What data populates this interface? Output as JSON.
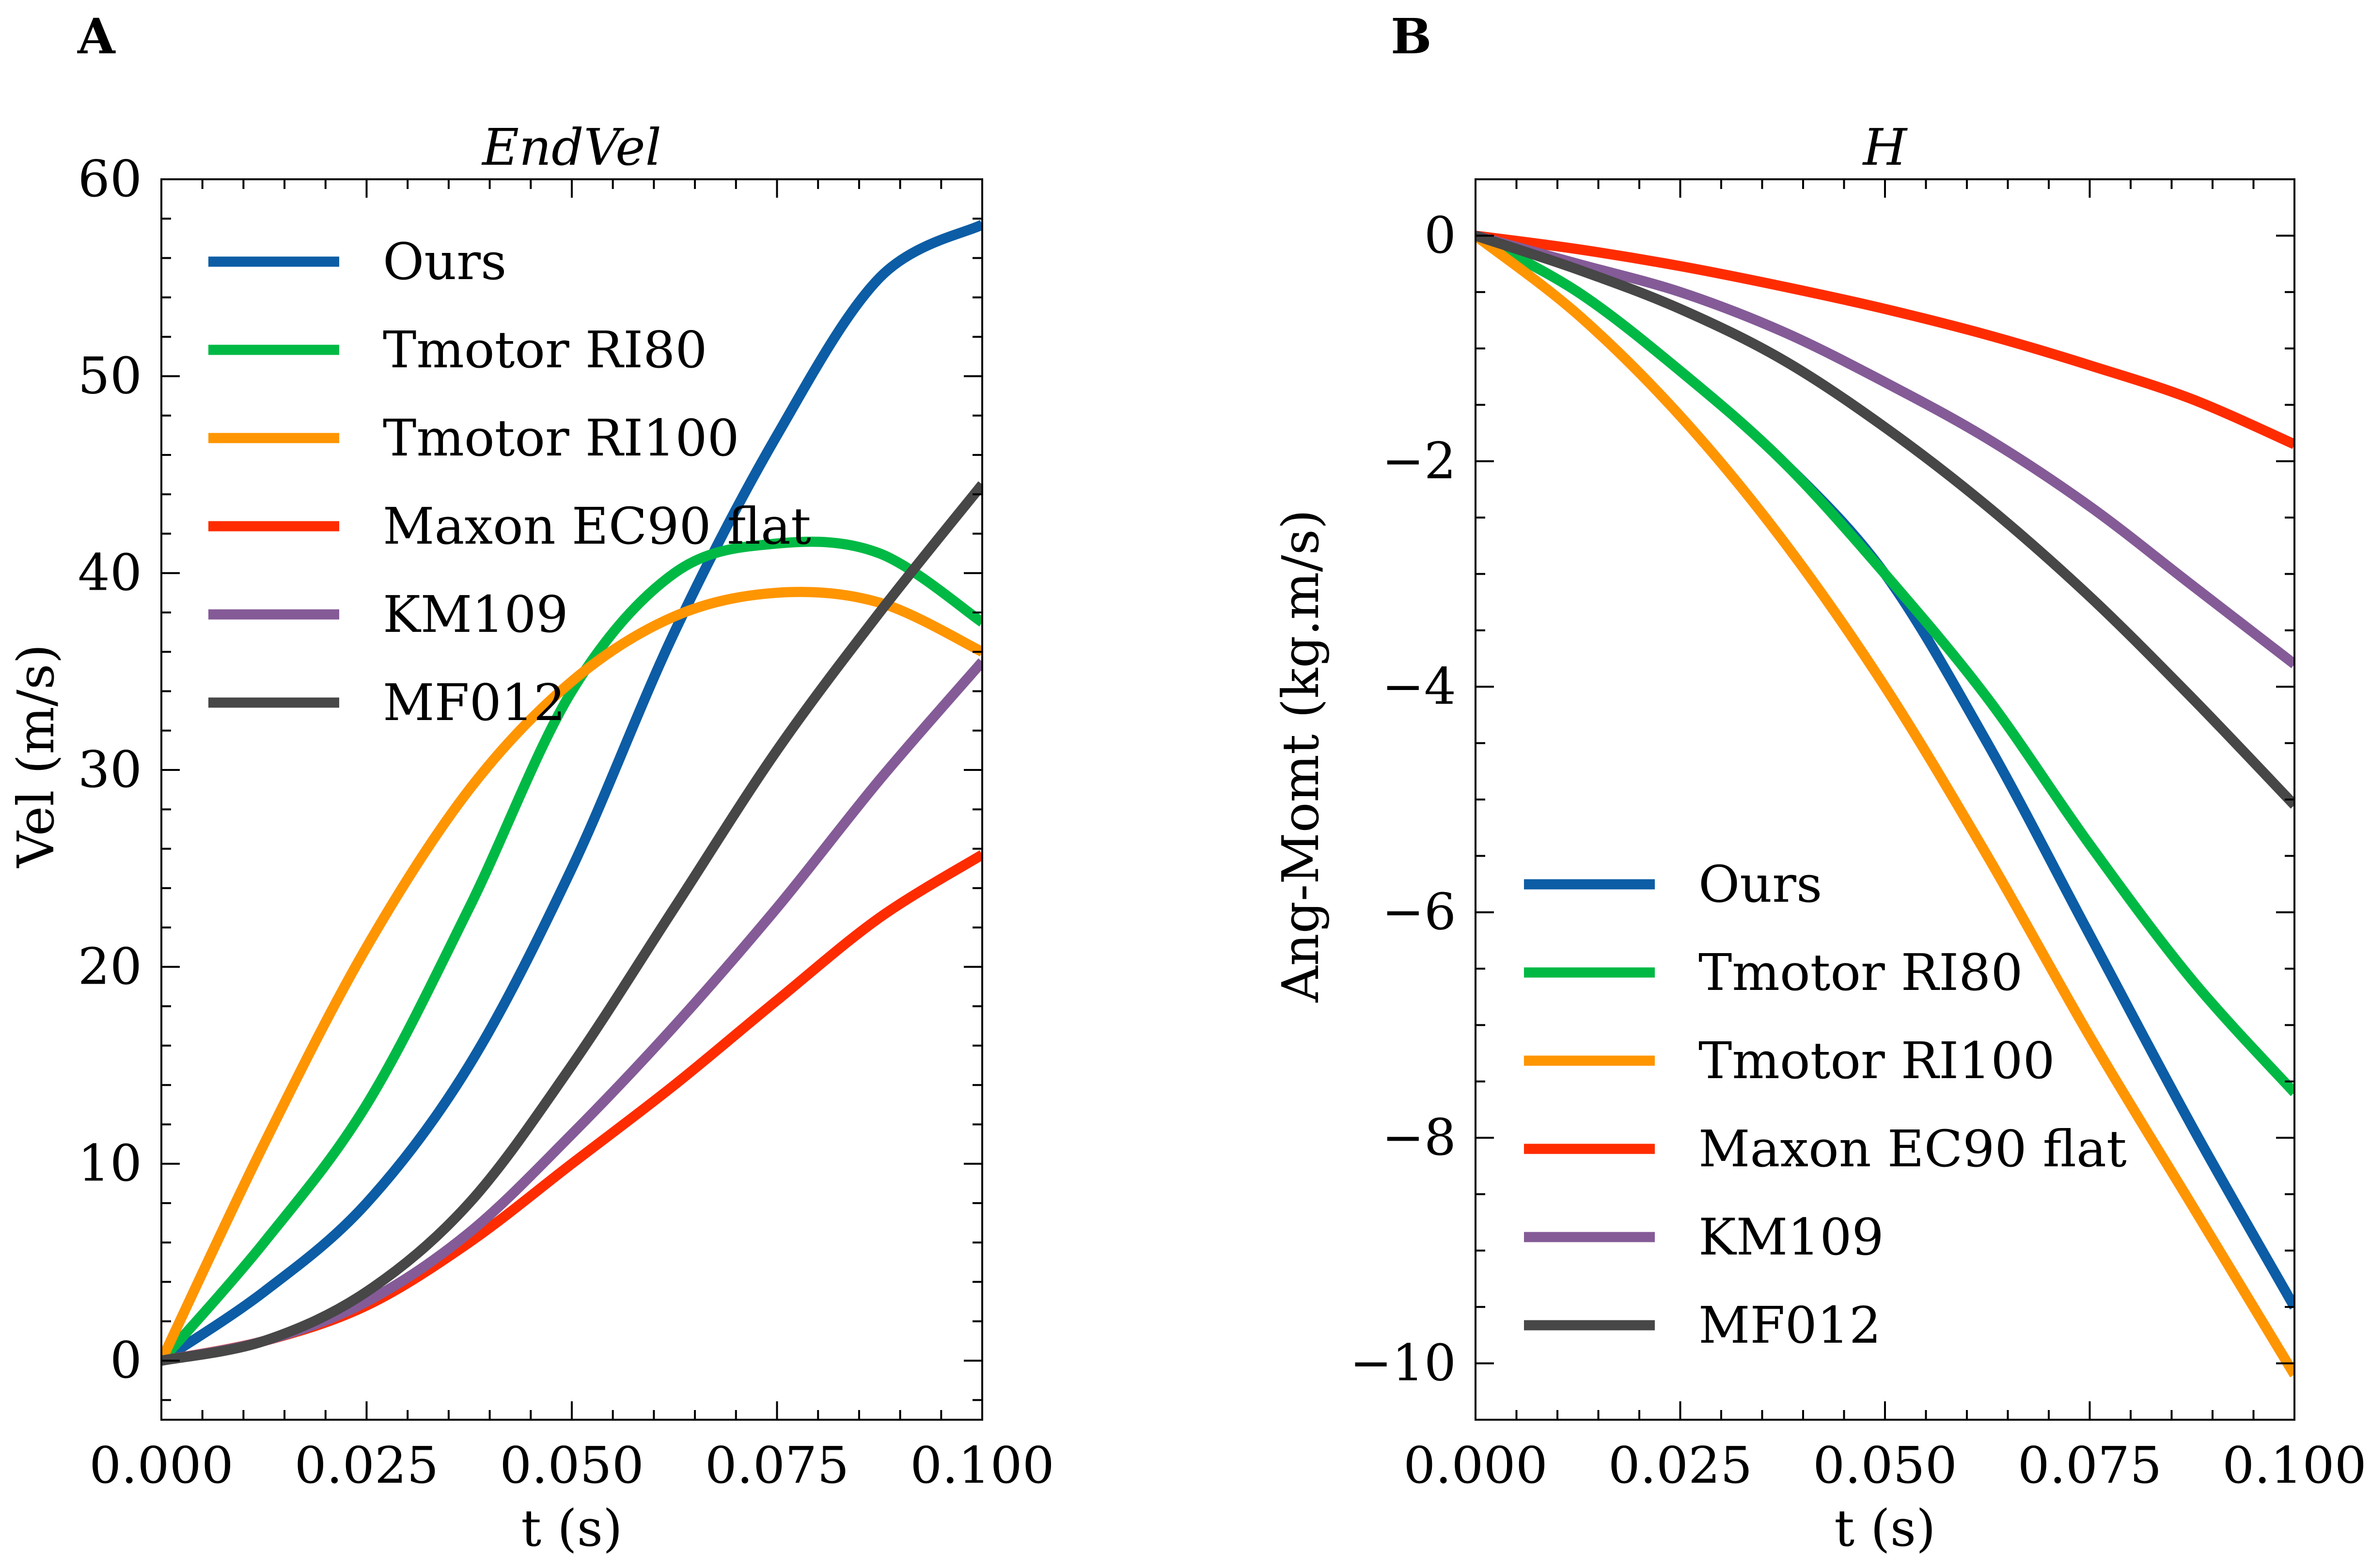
{
  "figure": {
    "panel_letters": [
      "A",
      "B"
    ]
  },
  "colors": {
    "Ours": "#0C5DA5",
    "Tmotor RI80": "#00B945",
    "Tmotor RI100": "#FF9500",
    "Maxon EC90 flat": "#FF2C00",
    "KM109": "#845B97",
    "MF012": "#474747"
  },
  "chart_data": [
    {
      "type": "line",
      "panel": "A",
      "title": "EndVel",
      "xlabel": "t (s)",
      "ylabel": "Vel (m/s)",
      "xlim": [
        0,
        0.1
      ],
      "ylim": [
        -3,
        60
      ],
      "xticks": [
        0,
        0.025,
        0.05,
        0.075,
        0.1
      ],
      "xtick_labels": [
        "0.000",
        "0.025",
        "0.050",
        "0.075",
        "0.100"
      ],
      "yticks": [
        0,
        10,
        20,
        30,
        40,
        50,
        60
      ],
      "ytick_labels": [
        "0",
        "10",
        "20",
        "30",
        "40",
        "50",
        "60"
      ],
      "grid": false,
      "legend_position": "upper-left",
      "x": [
        0,
        0.0125,
        0.025,
        0.0375,
        0.05,
        0.0625,
        0.075,
        0.0875,
        0.1
      ],
      "series": [
        {
          "name": "Ours",
          "values": [
            0,
            3.5,
            8,
            15,
            25,
            37,
            47,
            55,
            57.7
          ]
        },
        {
          "name": "Tmotor RI80",
          "values": [
            0,
            6,
            13,
            23,
            34,
            40,
            41.5,
            41,
            37.5
          ]
        },
        {
          "name": "Tmotor RI100",
          "values": [
            0,
            11,
            21,
            29,
            34.5,
            37.8,
            39,
            38.5,
            36
          ]
        },
        {
          "name": "Maxon EC90 flat",
          "values": [
            0,
            1,
            2.8,
            6,
            10,
            14,
            18.3,
            22.5,
            25.7
          ]
        },
        {
          "name": "KM109",
          "values": [
            0,
            1,
            3,
            6.5,
            11.5,
            17,
            23,
            29.5,
            35.5
          ]
        },
        {
          "name": "MF012",
          "values": [
            0,
            1,
            3.5,
            8,
            15,
            23,
            31,
            38,
            44.5
          ]
        }
      ]
    },
    {
      "type": "line",
      "panel": "B",
      "title": "H",
      "xlabel": "t (s)",
      "ylabel": "Ang-Momt (kg.m/s)",
      "xlim": [
        0,
        0.1
      ],
      "ylim": [
        -10.5,
        0.5
      ],
      "xticks": [
        0,
        0.025,
        0.05,
        0.075,
        0.1
      ],
      "xtick_labels": [
        "0.000",
        "0.025",
        "0.050",
        "0.075",
        "0.100"
      ],
      "yticks": [
        0,
        -2,
        -4,
        -6,
        -8,
        -10
      ],
      "ytick_labels": [
        "0",
        "−2",
        "−4",
        "−6",
        "−8",
        "−10"
      ],
      "grid": false,
      "legend_position": "lower-left",
      "x": [
        0,
        0.0125,
        0.025,
        0.0375,
        0.05,
        0.0625,
        0.075,
        0.0875,
        0.1
      ],
      "series": [
        {
          "name": "Ours",
          "values": [
            0,
            -0.5,
            -1.2,
            -2.0,
            -3.0,
            -4.5,
            -6.2,
            -7.9,
            -9.5
          ]
        },
        {
          "name": "Tmotor RI80",
          "values": [
            0,
            -0.5,
            -1.2,
            -2.0,
            -3.0,
            -4.1,
            -5.4,
            -6.6,
            -7.6
          ]
        },
        {
          "name": "Tmotor RI100",
          "values": [
            0,
            -0.7,
            -1.6,
            -2.7,
            -4.0,
            -5.5,
            -7.1,
            -8.6,
            -10.1
          ]
        },
        {
          "name": "Maxon EC90 flat",
          "values": [
            0,
            -0.12,
            -0.27,
            -0.45,
            -0.65,
            -0.88,
            -1.15,
            -1.45,
            -1.85
          ]
        },
        {
          "name": "KM109",
          "values": [
            0,
            -0.25,
            -0.5,
            -0.85,
            -1.3,
            -1.8,
            -2.4,
            -3.1,
            -3.8
          ]
        },
        {
          "name": "MF012",
          "values": [
            0,
            -0.3,
            -0.65,
            -1.1,
            -1.7,
            -2.4,
            -3.2,
            -4.1,
            -5.05
          ]
        }
      ]
    }
  ]
}
